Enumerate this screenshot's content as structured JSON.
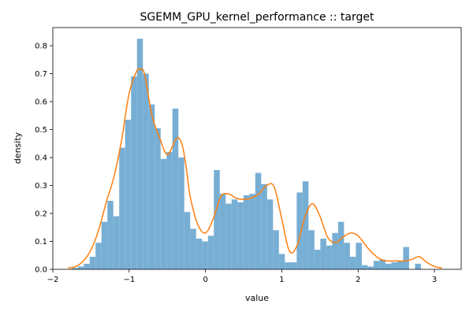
{
  "chart_data": {
    "type": "bar",
    "title": "SGEMM_GPU_kernel_performance :: target",
    "xlabel": "value",
    "ylabel": "density",
    "xlim": [
      -2.0,
      3.35
    ],
    "ylim": [
      0.0,
      0.865
    ],
    "x_ticks": [
      -2,
      -1,
      0,
      1,
      2,
      3
    ],
    "x_tick_labels": [
      "−2",
      "−1",
      "0",
      "1",
      "2",
      "3"
    ],
    "y_ticks": [
      0.0,
      0.1,
      0.2,
      0.3,
      0.4,
      0.5,
      0.6,
      0.7,
      0.8
    ],
    "y_tick_labels": [
      "0.0",
      "0.1",
      "0.2",
      "0.3",
      "0.4",
      "0.5",
      "0.6",
      "0.7",
      "0.8"
    ],
    "grid": false,
    "legend": "none",
    "colors": {
      "histogram": "#77aed4",
      "kde": "#ff7f0e",
      "axes": "#000000"
    },
    "series": [
      {
        "kind": "histogram",
        "bin_start": -1.75,
        "bin_width": 0.0775,
        "values": [
          0.005,
          0.01,
          0.02,
          0.045,
          0.095,
          0.17,
          0.245,
          0.19,
          0.435,
          0.535,
          0.69,
          0.825,
          0.7,
          0.59,
          0.505,
          0.395,
          0.42,
          0.575,
          0.4,
          0.205,
          0.145,
          0.11,
          0.1,
          0.12,
          0.355,
          0.27,
          0.235,
          0.25,
          0.24,
          0.265,
          0.27,
          0.345,
          0.305,
          0.25,
          0.14,
          0.055,
          0.025,
          0.025,
          0.275,
          0.315,
          0.14,
          0.07,
          0.11,
          0.085,
          0.13,
          0.17,
          0.095,
          0.045,
          0.095,
          0.015,
          0.01,
          0.03,
          0.035,
          0.02,
          0.025,
          0.03,
          0.08,
          0.0,
          0.02
        ]
      },
      {
        "kind": "kde",
        "x": [
          -1.8,
          -1.7,
          -1.6,
          -1.5,
          -1.4,
          -1.3,
          -1.2,
          -1.1,
          -1.0,
          -0.9,
          -0.85,
          -0.8,
          -0.7,
          -0.6,
          -0.5,
          -0.4,
          -0.35,
          -0.3,
          -0.25,
          -0.2,
          -0.1,
          0.0,
          0.1,
          0.2,
          0.3,
          0.4,
          0.5,
          0.6,
          0.7,
          0.8,
          0.9,
          1.0,
          1.1,
          1.2,
          1.3,
          1.4,
          1.5,
          1.6,
          1.7,
          1.8,
          1.9,
          2.0,
          2.1,
          2.2,
          2.3,
          2.4,
          2.5,
          2.6,
          2.7,
          2.8,
          2.9,
          3.0,
          3.1
        ],
        "y": [
          0.005,
          0.01,
          0.03,
          0.07,
          0.14,
          0.24,
          0.33,
          0.46,
          0.63,
          0.71,
          0.715,
          0.7,
          0.55,
          0.47,
          0.41,
          0.46,
          0.47,
          0.44,
          0.36,
          0.26,
          0.16,
          0.13,
          0.18,
          0.26,
          0.27,
          0.255,
          0.25,
          0.255,
          0.27,
          0.3,
          0.295,
          0.18,
          0.065,
          0.085,
          0.185,
          0.235,
          0.19,
          0.115,
          0.095,
          0.115,
          0.13,
          0.12,
          0.085,
          0.055,
          0.035,
          0.03,
          0.03,
          0.03,
          0.035,
          0.045,
          0.025,
          0.01,
          0.005
        ]
      }
    ]
  }
}
